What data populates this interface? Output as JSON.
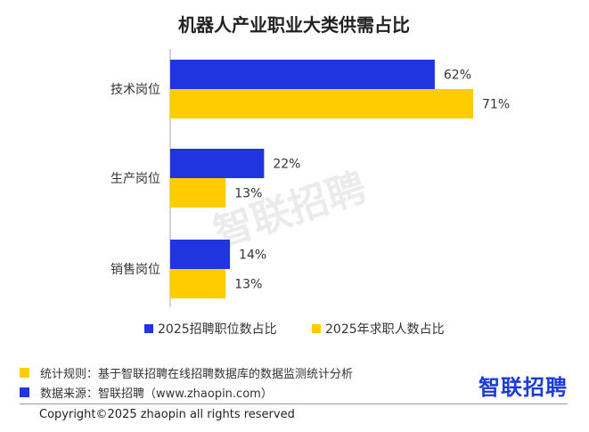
{
  "chart_data": {
    "type": "bar",
    "orientation": "horizontal",
    "title": "机器人产业职业大类供需占比",
    "categories": [
      "技术岗位",
      "生产岗位",
      "销售岗位"
    ],
    "series": [
      {
        "name": "2025招聘职位数占比",
        "values": [
          62,
          22,
          14
        ],
        "color": "#2034e0"
      },
      {
        "name": "2025年求职人数占比",
        "values": [
          71,
          13,
          13
        ],
        "color": "#ffcc00"
      }
    ],
    "value_suffix": "%",
    "xlim": [
      0,
      75
    ],
    "grid": false,
    "legend": "bottom"
  },
  "watermark": "智联招聘",
  "footer": {
    "rule_text": "统计规则：基于智联招聘在线招聘数据库的数据监测统计分析",
    "rule_color": "#ffcc00",
    "source_text": "数据来源：智联招聘（www.zhaopin.com）",
    "source_color": "#2034e0",
    "copyright": "Copyright©2025 zhaopin all rights reserved",
    "logo_text": "智联招聘"
  }
}
